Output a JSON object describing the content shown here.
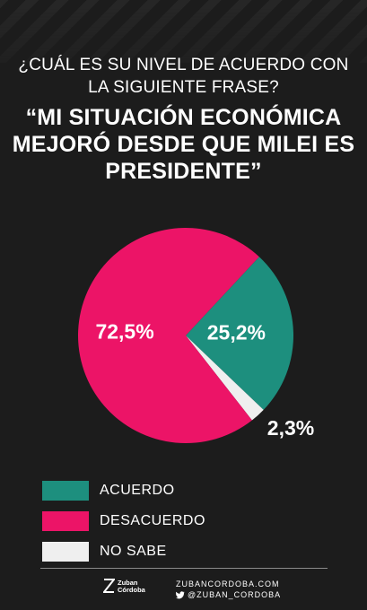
{
  "header": {
    "question": "¿CUÁL ES SU NIVEL DE ACUERDO CON LA SIGUIENTE FRASE?",
    "phrase": "“MI SITUACIÓN ECONÓMICA MEJORÓ DESDE QUE MILEI ES PRESIDENTE”"
  },
  "chart_data": {
    "type": "pie",
    "slices": [
      {
        "name": "ACUERDO",
        "value": 25.2,
        "label": "25,2%",
        "color": "#1d8f7e"
      },
      {
        "name": "NO SABE",
        "value": 2.3,
        "label": "2,3%",
        "color": "#efefef"
      },
      {
        "name": "DESACUERDO",
        "value": 72.5,
        "label": "72,5%",
        "color": "#ec1467"
      }
    ],
    "legend": [
      {
        "label": "ACUERDO",
        "color": "#1d8f7e"
      },
      {
        "label": "DESACUERDO",
        "color": "#ec1467"
      },
      {
        "label": "NO SABE",
        "color": "#efefef"
      }
    ],
    "legend_placement": "bottom-left"
  },
  "footer": {
    "logo_line1": "Zuban",
    "logo_line2": "Córdoba",
    "website": "ZUBANCORDOBA.COM",
    "twitter": "@ZUBAN_CORDOBA",
    "twitter_icon": "bird-icon",
    "logo_icon": "zc-logo-icon"
  }
}
